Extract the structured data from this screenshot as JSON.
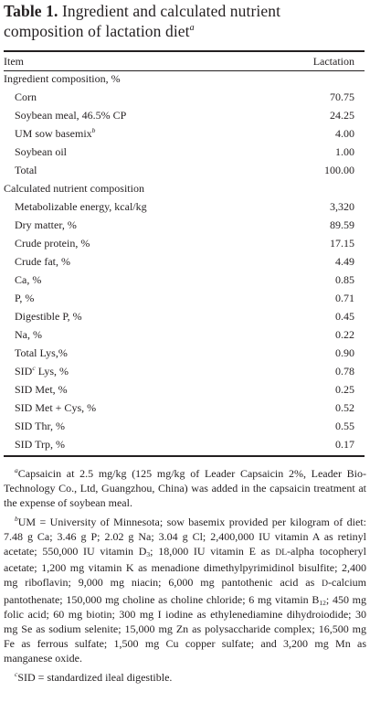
{
  "table": {
    "label": "Table 1.",
    "title": "Ingredient and calculated nutrient composition of lactation diet",
    "title_note_mark": "a",
    "header": {
      "item": "Item",
      "lactation": "Lactation"
    },
    "sections": [
      {
        "label": "Ingredient composition, %",
        "rows": [
          {
            "name": "Corn",
            "mark": "",
            "value": "70.75"
          },
          {
            "name": "Soybean meal, 46.5% CP",
            "mark": "",
            "value": "24.25"
          },
          {
            "name": "UM sow basemix",
            "mark": "b",
            "value": "4.00"
          },
          {
            "name": "Soybean oil",
            "mark": "",
            "value": "1.00"
          },
          {
            "name": "Total",
            "mark": "",
            "value": "100.00"
          }
        ]
      },
      {
        "label": "Calculated nutrient composition",
        "rows": [
          {
            "name": "Metabolizable energy, kcal/kg",
            "mark": "",
            "value": "3,320"
          },
          {
            "name": "Dry matter, %",
            "mark": "",
            "value": "89.59"
          },
          {
            "name": "Crude protein, %",
            "mark": "",
            "value": "17.15"
          },
          {
            "name": "Crude fat, %",
            "mark": "",
            "value": "4.49"
          },
          {
            "name": "Ca, %",
            "mark": "",
            "value": "0.85"
          },
          {
            "name": "P, %",
            "mark": "",
            "value": "0.71"
          },
          {
            "name": "Digestible P, %",
            "mark": "",
            "value": "0.45"
          },
          {
            "name": "Na, %",
            "mark": "",
            "value": "0.22"
          },
          {
            "name": "Total Lys,%",
            "mark": "",
            "value": "0.90"
          },
          {
            "name": "SID Lys, %",
            "mark": "c",
            "value": "0.78"
          },
          {
            "name": "SID Met, %",
            "mark": "",
            "value": "0.25"
          },
          {
            "name": "SID Met + Cys, %",
            "mark": "",
            "value": "0.52"
          },
          {
            "name": "SID Thr, %",
            "mark": "",
            "value": "0.55"
          },
          {
            "name": "SID Trp, %",
            "mark": "",
            "value": "0.17"
          }
        ]
      }
    ]
  },
  "footnotes": {
    "a": {
      "mark": "a",
      "text": "Capsaicin at 2.5 mg/kg (125 mg/kg of Leader Capsaicin 2%, Leader Bio-Technology Co., Ltd, Guangzhou, China) was added in the capsaicin treatment at the expense of soybean meal."
    },
    "b": {
      "mark": "b",
      "part1": "UM = University of Minnesota; sow basemix provided per kilogram of diet: 7.48 g Ca; 3.46 g P; 2.02 g Na; 3.04 g Cl; 2,400,000 IU vitamin A as retinyl acetate; 550,000 IU vitamin D",
      "sub1": "3",
      "part2": "; 18,000 IU vitamin E as ",
      "dl": "DL",
      "part3": "-alpha tocopheryl acetate; 1,200 mg vitamin K as menadione dimethylpyrimidinol bisulfite; 2,400 mg riboflavin; 9,000 mg niacin; 6,000 mg pantothenic acid as ",
      "d": "D",
      "part4": "-calcium pantothenate; 150,000 mg choline as choline chloride; 6 mg vitamin B",
      "sub2": "12",
      "part5": "; 450 mg folic acid; 60 mg biotin; 300 mg I iodine as ethylenediamine dihydroiodide; 30 mg Se as sodium selenite; 15,000 mg Zn as polysaccharide complex; 16,500 mg Fe as ferrous sulfate; 1,500 mg Cu copper sulfate; and 3,200 mg Mn as manganese oxide."
    },
    "c": {
      "mark": "c",
      "text": "SID = standardized ileal digestible."
    }
  }
}
